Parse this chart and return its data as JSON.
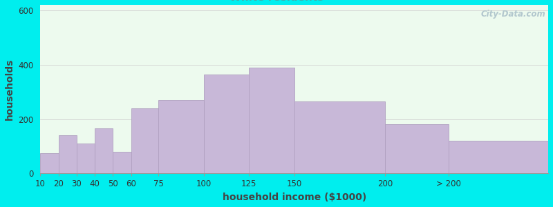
{
  "xlabel": "household income ($1000)",
  "ylabel": "households",
  "bg_color": "#00EEEE",
  "bar_color": "#C8B8D8",
  "bar_edge_color": "#B0A0C0",
  "values": [
    75,
    140,
    110,
    165,
    80,
    240,
    270,
    365,
    390,
    265,
    180,
    120
  ],
  "x_starts": [
    10,
    20,
    30,
    40,
    50,
    60,
    75,
    100,
    125,
    150,
    200,
    235
  ],
  "widths": [
    10,
    10,
    10,
    10,
    10,
    15,
    25,
    25,
    25,
    50,
    35,
    55
  ],
  "tick_positions": [
    10,
    20,
    30,
    40,
    50,
    60,
    75,
    100,
    125,
    150,
    200,
    235
  ],
  "tick_labels": [
    "10",
    "20",
    "30",
    "40",
    "50",
    "60",
    "75",
    "100",
    "125",
    "150",
    "200",
    "> 200"
  ],
  "xlim": [
    10,
    290
  ],
  "ylim": [
    0,
    620
  ],
  "yticks": [
    0,
    200,
    400,
    600
  ],
  "title_fontsize": 13,
  "subtitle_fontsize": 11,
  "title_color": "#222222",
  "subtitle_color": "#44AAAA",
  "axis_label_fontsize": 10,
  "tick_fontsize": 8.5,
  "plot_bg_color": "#EDFAEE",
  "watermark_text": "City-Data.com",
  "watermark_color": "#A8BEC8",
  "ylabel_color": "#444444",
  "xlabel_color": "#444444"
}
